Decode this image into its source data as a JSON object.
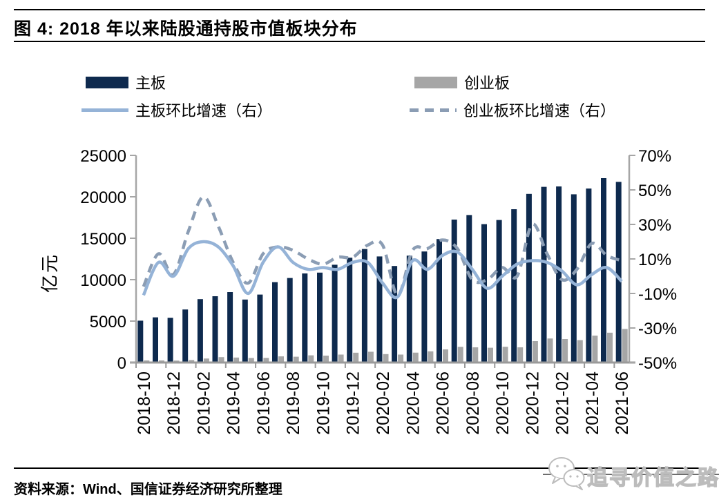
{
  "figure": {
    "title": "图 4:  2018 年以来陆股通持股市值板块分布",
    "source": "资料来源：Wind、国信证券经济研究所整理"
  },
  "watermark": {
    "text": "追寻价值之路",
    "icon": "wechat-icon"
  },
  "chart_data": {
    "type": "combo",
    "title": "2018 年以来陆股通持股市值板块分布",
    "categories": [
      "2018-10",
      "2018-11",
      "2018-12",
      "2019-01",
      "2019-02",
      "2019-03",
      "2019-04",
      "2019-05",
      "2019-06",
      "2019-07",
      "2019-08",
      "2019-09",
      "2019-10",
      "2019-11",
      "2019-12",
      "2020-01",
      "2020-02",
      "2020-03",
      "2020-04",
      "2020-05",
      "2020-06",
      "2020-07",
      "2020-08",
      "2020-09",
      "2020-10",
      "2020-11",
      "2020-12",
      "2021-01",
      "2021-02",
      "2021-03",
      "2021-04",
      "2021-05",
      "2021-06"
    ],
    "x_label_interval": 2,
    "x_tick_labels": [
      "2018-10",
      "2018-12",
      "2019-02",
      "2019-04",
      "2019-06",
      "2019-08",
      "2019-10",
      "2019-12",
      "2020-02",
      "2020-04",
      "2020-06",
      "2020-08",
      "2020-10",
      "2020-12",
      "2021-02",
      "2021-04",
      "2021-06"
    ],
    "series": [
      {
        "name": "主板",
        "type": "bar",
        "axis": "left",
        "color": "#0E2A4E",
        "values": [
          5050,
          5450,
          5400,
          6400,
          7650,
          8000,
          8500,
          7600,
          8200,
          9700,
          10200,
          10750,
          10850,
          11800,
          12650,
          13700,
          12800,
          11650,
          12900,
          13400,
          14900,
          17250,
          17800,
          16700,
          17200,
          18500,
          20350,
          21200,
          21250,
          20300,
          21000,
          22250,
          21800
        ]
      },
      {
        "name": "创业板",
        "type": "bar",
        "axis": "left",
        "color": "#A6A6A6",
        "values": [
          250,
          250,
          230,
          300,
          480,
          650,
          600,
          550,
          560,
          740,
          700,
          870,
          830,
          960,
          1180,
          1300,
          1020,
          960,
          1190,
          1350,
          1580,
          1890,
          1830,
          1780,
          1900,
          1830,
          2580,
          2900,
          2830,
          2700,
          3250,
          3600,
          4050
        ]
      },
      {
        "name": "主板环比增速（右）",
        "type": "line",
        "style": "solid",
        "axis": "right",
        "color": "#95B3D7",
        "values": [
          -11,
          8,
          0,
          16,
          20,
          17,
          6,
          -10,
          8,
          17,
          8,
          4,
          5,
          4,
          8,
          8,
          -4,
          -12,
          9,
          4,
          12,
          14,
          4,
          -7,
          0,
          7,
          9,
          8,
          3,
          -5,
          1,
          5,
          -3
        ]
      },
      {
        "name": "创业板环比增速（右）",
        "type": "line",
        "style": "dashed",
        "axis": "right",
        "color": "#8B9DB4",
        "values": [
          -6,
          13,
          1,
          26,
          46,
          29,
          8,
          -4,
          13,
          17,
          15,
          10,
          7,
          11,
          11,
          18,
          18,
          -11,
          15,
          16,
          21,
          16,
          -2,
          -2,
          5,
          0,
          30,
          13,
          -2,
          4,
          19,
          12,
          9
        ]
      }
    ],
    "left_axis": {
      "label": "亿元",
      "min": 0,
      "max": 25000,
      "step": 5000,
      "ticks": [
        "0",
        "5000",
        "10000",
        "15000",
        "20000",
        "25000"
      ]
    },
    "right_axis": {
      "min": -50,
      "max": 70,
      "step": 20,
      "ticks": [
        "70%",
        "50%",
        "30%",
        "10%",
        "-10%",
        "-30%",
        "-50%"
      ]
    },
    "grid": false,
    "legend_position": "top"
  }
}
